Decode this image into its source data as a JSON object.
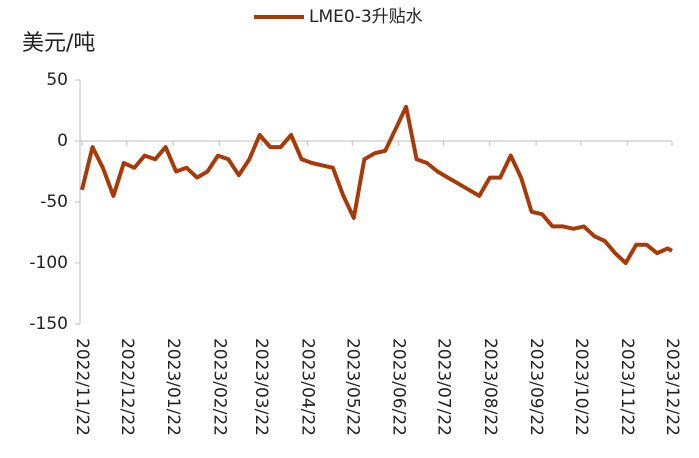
{
  "chart_data": {
    "type": "line",
    "y_label": "美元/吨",
    "series": [
      {
        "name": "LME0-3升贴水",
        "color": "#a63a08",
        "values": [
          -40,
          -5,
          -22,
          -45,
          -18,
          -22,
          -12,
          -15,
          -5,
          -25,
          -22,
          -30,
          -25,
          -12,
          -15,
          -28,
          -15,
          5,
          -5,
          -5,
          5,
          -15,
          -18,
          -20,
          -22,
          -45,
          -63,
          -15,
          -10,
          -8,
          10,
          28,
          -15,
          -18,
          -25,
          -30,
          -35,
          -40,
          -45,
          -30,
          -30,
          -12,
          -30,
          -58,
          -60,
          -70,
          -70,
          -72,
          -70,
          -78,
          -82,
          -92,
          -100,
          -85,
          -85,
          -92,
          -88,
          -90
        ]
      }
    ],
    "x": [
      "2022/11/22",
      "2022/11/29",
      "2022/12/06",
      "2022/12/13",
      "2022/12/20",
      "2022/12/27",
      "2023/01/03",
      "2023/01/10",
      "2023/01/17",
      "2023/01/24",
      "2023/01/31",
      "2023/02/07",
      "2023/02/14",
      "2023/02/21",
      "2023/02/28",
      "2023/03/07",
      "2023/03/14",
      "2023/03/21",
      "2023/03/28",
      "2023/04/04",
      "2023/04/11",
      "2023/04/18",
      "2023/04/25",
      "2023/05/02",
      "2023/05/09",
      "2023/05/16",
      "2023/05/23",
      "2023/05/30",
      "2023/06/06",
      "2023/06/13",
      "2023/06/20",
      "2023/06/27",
      "2023/07/04",
      "2023/07/11",
      "2023/07/18",
      "2023/07/25",
      "2023/08/01",
      "2023/08/08",
      "2023/08/15",
      "2023/08/22",
      "2023/08/29",
      "2023/09/05",
      "2023/09/12",
      "2023/09/19",
      "2023/09/26",
      "2023/10/03",
      "2023/10/10",
      "2023/10/17",
      "2023/10/24",
      "2023/10/31",
      "2023/11/07",
      "2023/11/14",
      "2023/11/21",
      "2023/11/28",
      "2023/12/05",
      "2023/12/12",
      "2023/12/19",
      "2023/12/22"
    ],
    "xlim": [
      "2022/11/22",
      "2023/12/22"
    ],
    "xticks": [
      "2022/11/22",
      "2022/12/22",
      "2023/01/22",
      "2023/02/22",
      "2023/03/22",
      "2023/04/22",
      "2023/05/22",
      "2023/06/22",
      "2023/07/22",
      "2023/08/22",
      "2023/09/22",
      "2023/10/22",
      "2023/11/22",
      "2023/12/22"
    ],
    "ylim": [
      -150,
      50
    ],
    "yticks": [
      -150,
      -100,
      -50,
      0,
      50
    ],
    "legend": "top"
  }
}
